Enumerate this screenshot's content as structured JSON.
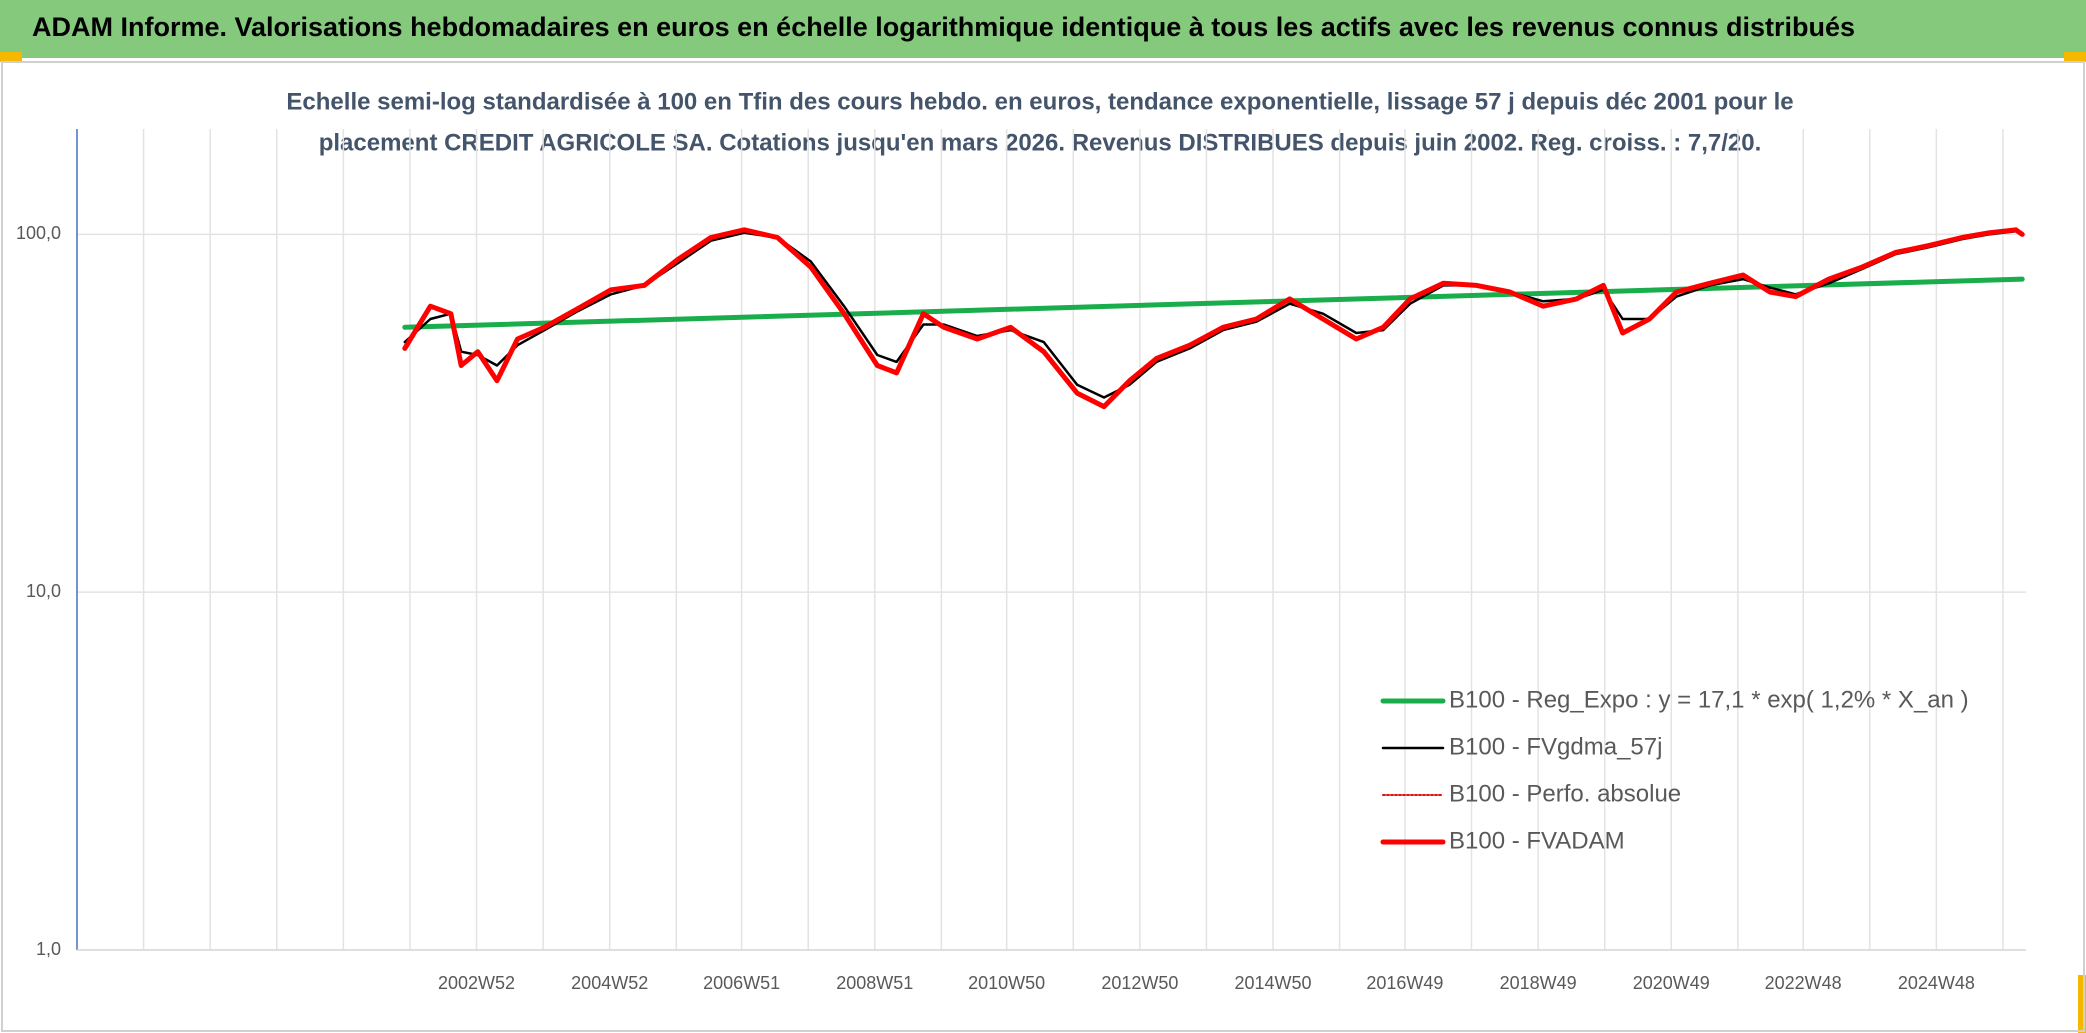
{
  "chart_data": {
    "type": "line",
    "title": "ADAM Informe. Valorisations hebdomadaires en euros en échelle logarithmique identique à tous les actifs avec les revenus connus distribués",
    "subtitle": [
      "Echelle semi-log standardisée à 100 en Tfin des cours hebdo. en euros, tendance exponentielle, lissage 57 j depuis déc 2001 pour le",
      "placement CREDIT AGRICOLE SA. Cotations jusqu'en mars 2026. Revenus DISTRIBUES depuis juin 2002. Reg. croiss. : 7,7/20."
    ],
    "log_scale": true,
    "grid": true,
    "legend": "lower right",
    "ylim": [
      1,
      197
    ],
    "yticks": [
      {
        "value": 1,
        "label": "1,0"
      },
      {
        "value": 10,
        "label": "10,0"
      },
      {
        "value": 100,
        "label": "100,0"
      }
    ],
    "xlim": [
      "1996W52",
      "2026W14"
    ],
    "xticks": [
      "2002W52",
      "2004W52",
      "2006W51",
      "2008W51",
      "2010W50",
      "2012W50",
      "2014W50",
      "2016W49",
      "2018W49",
      "2020W49",
      "2022W48",
      "2024W48"
    ],
    "x": [
      "2001W48",
      "2002W16",
      "2002W32",
      "2002W40",
      "2003W01",
      "2003W16",
      "2003W32",
      "2004W01",
      "2004W27",
      "2005W01",
      "2005W27",
      "2006W01",
      "2006W27",
      "2007W01",
      "2007W27",
      "2008W01",
      "2008W27",
      "2009W01",
      "2009W16",
      "2009W37",
      "2010W01",
      "2010W27",
      "2011W01",
      "2011W27",
      "2012W01",
      "2012W22",
      "2012W42",
      "2013W11",
      "2013W37",
      "2014W11",
      "2014W37",
      "2015W11",
      "2015W37",
      "2016W11",
      "2016W32",
      "2017W01",
      "2017W27",
      "2018W01",
      "2018W27",
      "2019W01",
      "2019W27",
      "2019W48",
      "2020W11",
      "2020W32",
      "2021W01",
      "2021W27",
      "2022W01",
      "2022W22",
      "2022W42",
      "2023W16",
      "2023W42",
      "2024W16",
      "2024W42",
      "2025W16",
      "2025W37",
      "2026W06",
      "2026W11"
    ],
    "series": [
      {
        "name": "B100 - Reg_Expo : y = 17,1 * exp( 1,2% *  X_an )",
        "color": "#19ad4c",
        "style": "thick",
        "x": [
          "2001W48",
          "2026W11"
        ],
        "values": [
          55,
          75
        ]
      },
      {
        "name": "B100 - FVgdma_57j",
        "color": "#000000",
        "style": "thin",
        "values": [
          50,
          58,
          60,
          47,
          46,
          43,
          49,
          54,
          61,
          68,
          72,
          83,
          96,
          101,
          98,
          84,
          63,
          46,
          44,
          56,
          56,
          52,
          54,
          50,
          38,
          35,
          38,
          44,
          48,
          54,
          57,
          64,
          60,
          53,
          54,
          64,
          72,
          72,
          69,
          65,
          66,
          70,
          58,
          58,
          67,
          72,
          75,
          71,
          68,
          73,
          80,
          88,
          92,
          97,
          100,
          102,
          101
        ]
      },
      {
        "name": "B100 - Perfo. absolue",
        "color": "#e01010",
        "style": "dotted",
        "values": [
          48,
          63,
          60,
          43,
          47,
          39,
          51,
          55,
          62,
          70,
          72,
          85,
          98,
          103,
          98,
          81,
          60,
          43,
          41,
          60,
          55,
          51,
          55,
          47,
          36,
          33,
          39,
          45,
          49,
          55,
          58,
          66,
          58,
          51,
          55,
          66,
          73,
          72,
          69,
          63,
          66,
          72,
          53,
          58,
          69,
          73,
          77,
          69,
          67,
          75,
          81,
          89,
          93,
          98,
          101,
          103,
          100
        ]
      },
      {
        "name": "B100 - FVADAM",
        "color": "#ff0000",
        "style": "thick",
        "values": [
          48,
          63,
          60,
          43,
          47,
          39,
          51,
          55,
          62,
          70,
          72,
          85,
          98,
          103,
          98,
          81,
          60,
          43,
          41,
          60,
          55,
          51,
          55,
          47,
          36,
          33,
          39,
          45,
          49,
          55,
          58,
          66,
          58,
          51,
          55,
          66,
          73,
          72,
          69,
          63,
          66,
          72,
          53,
          58,
          69,
          73,
          77,
          69,
          67,
          75,
          81,
          89,
          93,
          98,
          101,
          103,
          100
        ]
      }
    ]
  }
}
